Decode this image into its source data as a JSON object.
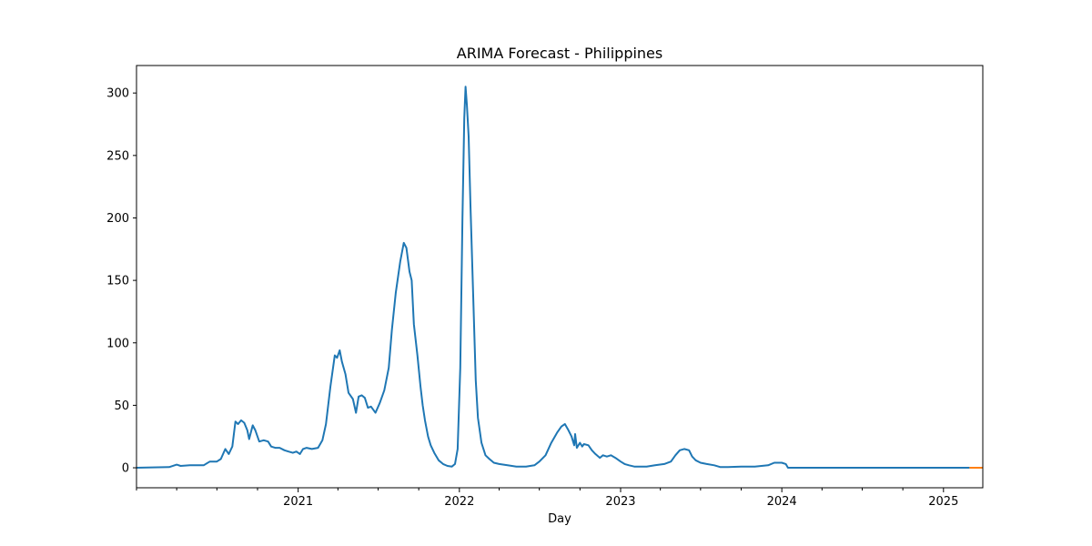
{
  "chart_data": {
    "type": "line",
    "title": "ARIMA Forecast - Philippines",
    "xlabel": "Day",
    "ylabel": "",
    "ylim": [
      -16,
      322
    ],
    "xlim": [
      "2020-01-01",
      "2025-03-31"
    ],
    "grid": false,
    "legend": "none",
    "x_ticks": [
      "2021",
      "2022",
      "2023",
      "2024",
      "2025"
    ],
    "y_ticks": [
      "0",
      "50",
      "100",
      "150",
      "200",
      "250",
      "300"
    ],
    "series": [
      {
        "role": "observed",
        "color": "#1f77b4",
        "points": [
          [
            "2020-01-01",
            0
          ],
          [
            "2020-03-15",
            0.5
          ],
          [
            "2020-04-01",
            2.5
          ],
          [
            "2020-04-10",
            1.5
          ],
          [
            "2020-05-01",
            2
          ],
          [
            "2020-06-01",
            2
          ],
          [
            "2020-06-15",
            5
          ],
          [
            "2020-07-01",
            5
          ],
          [
            "2020-07-10",
            7
          ],
          [
            "2020-07-20",
            15
          ],
          [
            "2020-07-28",
            11
          ],
          [
            "2020-08-05",
            17
          ],
          [
            "2020-08-12",
            37
          ],
          [
            "2020-08-18",
            35
          ],
          [
            "2020-08-25",
            38
          ],
          [
            "2020-09-01",
            36
          ],
          [
            "2020-09-08",
            30
          ],
          [
            "2020-09-12",
            23
          ],
          [
            "2020-09-20",
            34
          ],
          [
            "2020-09-26",
            30
          ],
          [
            "2020-10-05",
            21
          ],
          [
            "2020-10-15",
            22
          ],
          [
            "2020-10-25",
            21
          ],
          [
            "2020-11-01",
            17
          ],
          [
            "2020-11-10",
            16
          ],
          [
            "2020-11-20",
            16
          ],
          [
            "2020-12-01",
            14
          ],
          [
            "2020-12-10",
            13
          ],
          [
            "2020-12-20",
            12
          ],
          [
            "2020-12-28",
            13
          ],
          [
            "2021-01-05",
            11
          ],
          [
            "2021-01-12",
            15
          ],
          [
            "2021-01-20",
            16
          ],
          [
            "2021-02-01",
            15
          ],
          [
            "2021-02-15",
            16
          ],
          [
            "2021-02-25",
            22
          ],
          [
            "2021-03-05",
            35
          ],
          [
            "2021-03-15",
            65
          ],
          [
            "2021-03-25",
            90
          ],
          [
            "2021-03-30",
            88
          ],
          [
            "2021-04-05",
            94
          ],
          [
            "2021-04-10",
            85
          ],
          [
            "2021-04-18",
            75
          ],
          [
            "2021-04-25",
            60
          ],
          [
            "2021-05-05",
            55
          ],
          [
            "2021-05-12",
            44
          ],
          [
            "2021-05-18",
            57
          ],
          [
            "2021-05-25",
            58
          ],
          [
            "2021-06-01",
            56
          ],
          [
            "2021-06-08",
            48
          ],
          [
            "2021-06-15",
            49
          ],
          [
            "2021-06-25",
            44
          ],
          [
            "2021-07-05",
            52
          ],
          [
            "2021-07-15",
            62
          ],
          [
            "2021-07-25",
            80
          ],
          [
            "2021-08-01",
            110
          ],
          [
            "2021-08-10",
            140
          ],
          [
            "2021-08-20",
            165
          ],
          [
            "2021-08-28",
            180
          ],
          [
            "2021-09-03",
            176
          ],
          [
            "2021-09-10",
            157
          ],
          [
            "2021-09-15",
            150
          ],
          [
            "2021-09-20",
            115
          ],
          [
            "2021-09-28",
            90
          ],
          [
            "2021-10-05",
            65
          ],
          [
            "2021-10-10",
            50
          ],
          [
            "2021-10-15",
            38
          ],
          [
            "2021-10-22",
            25
          ],
          [
            "2021-10-28",
            18
          ],
          [
            "2021-11-05",
            12
          ],
          [
            "2021-11-15",
            6
          ],
          [
            "2021-11-25",
            3
          ],
          [
            "2021-12-05",
            1.5
          ],
          [
            "2021-12-15",
            1
          ],
          [
            "2021-12-22",
            3
          ],
          [
            "2021-12-28",
            15
          ],
          [
            "2022-01-03",
            80
          ],
          [
            "2022-01-08",
            200
          ],
          [
            "2022-01-12",
            280
          ],
          [
            "2022-01-15",
            305
          ],
          [
            "2022-01-18",
            290
          ],
          [
            "2022-01-22",
            265
          ],
          [
            "2022-01-26",
            210
          ],
          [
            "2022-02-01",
            140
          ],
          [
            "2022-02-07",
            70
          ],
          [
            "2022-02-12",
            40
          ],
          [
            "2022-02-20",
            20
          ],
          [
            "2022-03-01",
            10
          ],
          [
            "2022-03-10",
            7
          ],
          [
            "2022-03-20",
            4
          ],
          [
            "2022-04-01",
            3
          ],
          [
            "2022-04-20",
            2
          ],
          [
            "2022-05-10",
            1
          ],
          [
            "2022-06-01",
            1
          ],
          [
            "2022-06-20",
            2
          ],
          [
            "2022-07-01",
            5
          ],
          [
            "2022-07-15",
            10
          ],
          [
            "2022-07-28",
            20
          ],
          [
            "2022-08-10",
            28
          ],
          [
            "2022-08-20",
            33
          ],
          [
            "2022-08-28",
            35
          ],
          [
            "2022-09-05",
            30
          ],
          [
            "2022-09-12",
            25
          ],
          [
            "2022-09-18",
            18
          ],
          [
            "2022-09-20",
            27
          ],
          [
            "2022-09-24",
            16
          ],
          [
            "2022-10-01",
            20
          ],
          [
            "2022-10-06",
            17
          ],
          [
            "2022-10-10",
            19
          ],
          [
            "2022-10-20",
            18
          ],
          [
            "2022-10-28",
            14
          ],
          [
            "2022-11-05",
            11
          ],
          [
            "2022-11-15",
            8
          ],
          [
            "2022-11-22",
            10
          ],
          [
            "2022-12-01",
            9
          ],
          [
            "2022-12-10",
            10
          ],
          [
            "2022-12-20",
            8
          ],
          [
            "2023-01-01",
            5
          ],
          [
            "2023-01-10",
            3
          ],
          [
            "2023-01-20",
            2
          ],
          [
            "2023-02-01",
            1
          ],
          [
            "2023-03-01",
            1
          ],
          [
            "2023-03-20",
            2
          ],
          [
            "2023-04-10",
            3
          ],
          [
            "2023-04-25",
            5
          ],
          [
            "2023-05-05",
            10
          ],
          [
            "2023-05-15",
            14
          ],
          [
            "2023-05-25",
            15
          ],
          [
            "2023-06-05",
            14
          ],
          [
            "2023-06-12",
            9
          ],
          [
            "2023-06-20",
            6
          ],
          [
            "2023-07-01",
            4
          ],
          [
            "2023-07-15",
            3
          ],
          [
            "2023-08-01",
            2
          ],
          [
            "2023-08-15",
            0.5
          ],
          [
            "2023-09-01",
            0.5
          ],
          [
            "2023-10-01",
            1
          ],
          [
            "2023-11-01",
            1
          ],
          [
            "2023-12-01",
            2
          ],
          [
            "2023-12-15",
            4
          ],
          [
            "2024-01-01",
            4
          ],
          [
            "2024-01-10",
            3
          ],
          [
            "2024-01-15",
            0
          ],
          [
            "2024-06-01",
            0
          ],
          [
            "2025-01-01",
            0
          ],
          [
            "2025-03-01",
            0
          ]
        ]
      },
      {
        "role": "forecast",
        "color": "#ff7f0e",
        "points": [
          [
            "2025-03-01",
            0
          ],
          [
            "2025-03-31",
            0
          ]
        ]
      }
    ]
  }
}
